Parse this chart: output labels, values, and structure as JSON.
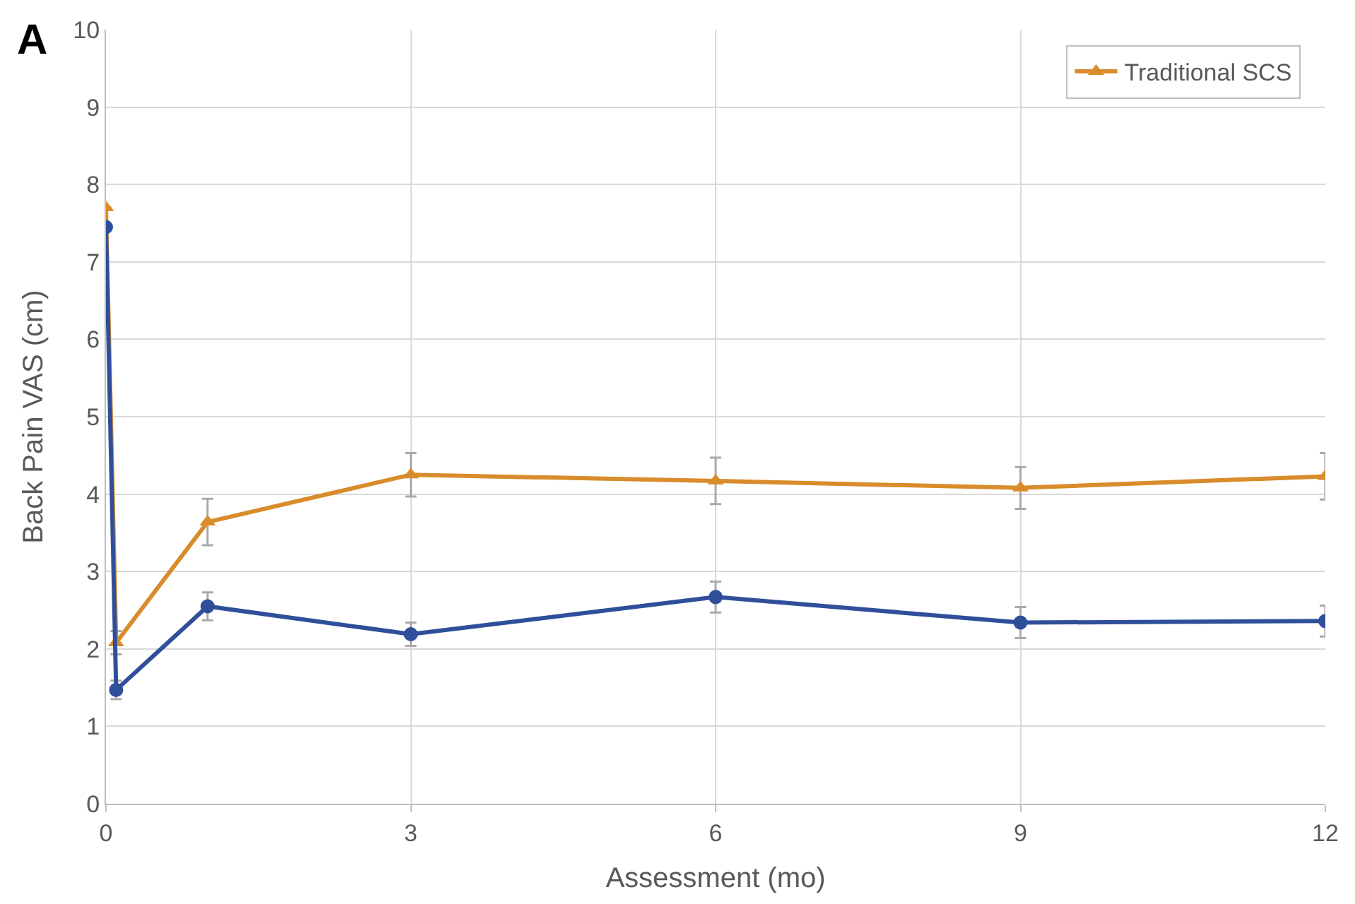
{
  "chart_data": {
    "type": "line",
    "xlabel": "Assessment (mo)",
    "ylabel": "Back Pain VAS (cm)",
    "annotations": [
      "A"
    ],
    "xlim": [
      0,
      12
    ],
    "xticks": [
      0,
      3,
      6,
      9,
      12
    ],
    "ylim": [
      0,
      10
    ],
    "yticks": [
      0,
      1,
      2,
      3,
      4,
      5,
      6,
      7,
      8,
      9,
      10
    ],
    "grid": true,
    "legend": "top right",
    "series": [
      {
        "name": "Traditional SCS",
        "color": "#d98c2b",
        "marker": "triangle",
        "x": [
          0,
          0.1,
          1,
          3,
          6,
          9,
          12
        ],
        "values": [
          7.7,
          2.08,
          3.64,
          4.25,
          4.17,
          4.08,
          4.23
        ],
        "errors": [
          null,
          0.15,
          0.3,
          0.28,
          0.3,
          0.27,
          0.3
        ]
      },
      {
        "color": "#2f4f9a",
        "marker": "circle",
        "x": [
          0,
          0.1,
          1,
          3,
          6,
          9,
          12
        ],
        "values": [
          7.45,
          1.47,
          2.55,
          2.19,
          2.67,
          2.34,
          2.36
        ],
        "errors": [
          null,
          0.12,
          0.18,
          0.15,
          0.2,
          0.2,
          0.2
        ]
      }
    ]
  }
}
